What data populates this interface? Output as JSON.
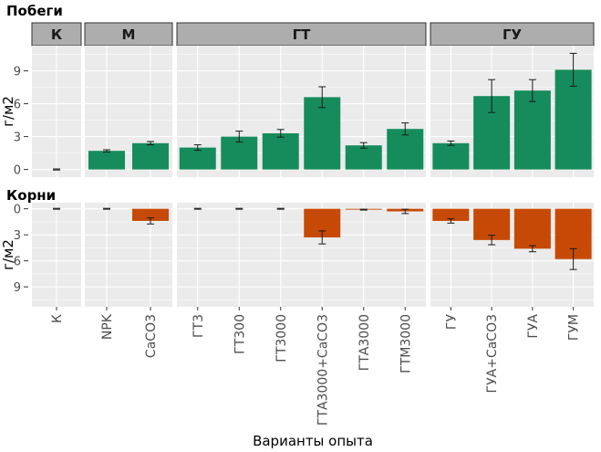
{
  "chart_data": {
    "type": "bar",
    "xlabel": "Варианты опыта",
    "ylabel": "г/м2",
    "colors": {
      "shoots": "#168c5c",
      "roots": "#c64a06",
      "panel": "#ebebeb",
      "strip": "#adadad",
      "grid": "#ffffff"
    },
    "facets": [
      {
        "name": "К",
        "categories": [
          "К"
        ]
      },
      {
        "name": "М",
        "categories": [
          "NPK",
          "CaCO3"
        ]
      },
      {
        "name": "ГТ",
        "categories": [
          "ГТ3",
          "ГТ300",
          "ГТ3000",
          "ГТА3000+CaCO3",
          "ГТА3000",
          "ГТМ3000"
        ]
      },
      {
        "name": "ГУ",
        "categories": [
          "ГУ",
          "ГУА+CaCO3",
          "ГУА",
          "ГУМ"
        ]
      }
    ],
    "rows": [
      {
        "title": "Побеги",
        "ylim": [
          -0.7,
          11.3
        ],
        "yticks": [
          0,
          3,
          6,
          9
        ],
        "reversed": false,
        "color": "shoots",
        "values": [
          0.0,
          1.7,
          2.4,
          2.0,
          3.0,
          3.3,
          6.6,
          2.2,
          3.7,
          2.4,
          6.7,
          7.2,
          9.1
        ],
        "err": [
          0.05,
          0.1,
          0.15,
          0.25,
          0.5,
          0.35,
          0.95,
          0.25,
          0.55,
          0.2,
          1.5,
          1.0,
          1.5
        ]
      },
      {
        "title": "Корни",
        "ylim": [
          -0.7,
          11.3
        ],
        "yticks": [
          0,
          3,
          6,
          9
        ],
        "reversed": true,
        "color": "roots",
        "values": [
          0.0,
          0.0,
          1.4,
          0.0,
          0.0,
          0.0,
          3.3,
          0.1,
          0.3,
          1.4,
          3.6,
          4.6,
          5.8
        ],
        "err": [
          0.05,
          0.05,
          0.35,
          0.05,
          0.05,
          0.05,
          0.75,
          0.05,
          0.25,
          0.25,
          0.55,
          0.35,
          1.2
        ]
      }
    ]
  }
}
